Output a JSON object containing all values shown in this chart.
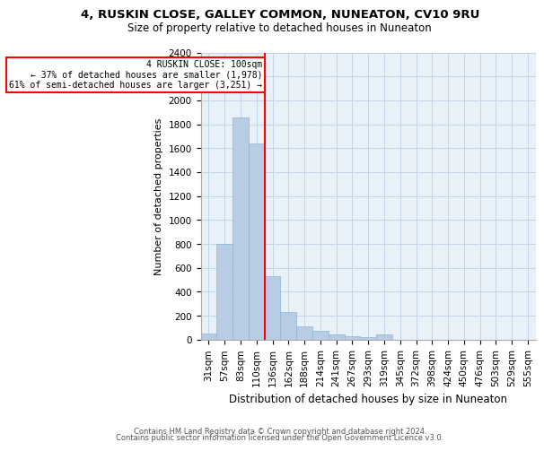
{
  "title1": "4, RUSKIN CLOSE, GALLEY COMMON, NUNEATON, CV10 9RU",
  "title2": "Size of property relative to detached houses in Nuneaton",
  "xlabel": "Distribution of detached houses by size in Nuneaton",
  "ylabel": "Number of detached properties",
  "categories": [
    "31sqm",
    "57sqm",
    "83sqm",
    "110sqm",
    "136sqm",
    "162sqm",
    "188sqm",
    "214sqm",
    "241sqm",
    "267sqm",
    "293sqm",
    "319sqm",
    "345sqm",
    "372sqm",
    "398sqm",
    "424sqm",
    "450sqm",
    "476sqm",
    "503sqm",
    "529sqm",
    "555sqm"
  ],
  "values": [
    50,
    800,
    1860,
    1640,
    530,
    230,
    110,
    70,
    40,
    30,
    20,
    40,
    0,
    0,
    0,
    0,
    0,
    0,
    0,
    0,
    0
  ],
  "bar_color": "#b8cce4",
  "bar_edge_color": "#8eb4d8",
  "vline_color": "red",
  "vline_x": 3.5,
  "annotation_title": "4 RUSKIN CLOSE: 100sqm",
  "annotation_line1": "← 37% of detached houses are smaller (1,978)",
  "annotation_line2": "61% of semi-detached houses are larger (3,251) →",
  "annotation_box_color": "red",
  "annotation_text_color": "black",
  "annotation_bg": "white",
  "ylim": [
    0,
    2400
  ],
  "yticks": [
    0,
    200,
    400,
    600,
    800,
    1000,
    1200,
    1400,
    1600,
    1800,
    2000,
    2200,
    2400
  ],
  "grid_color": "#c0d4e8",
  "bg_color": "#e8f0f8",
  "footer1": "Contains HM Land Registry data © Crown copyright and database right 2024.",
  "footer2": "Contains public sector information licensed under the Open Government Licence v3.0.",
  "title1_fontsize": 9.5,
  "title2_fontsize": 8.5,
  "xlabel_fontsize": 8.5,
  "ylabel_fontsize": 8,
  "tick_fontsize": 7.5,
  "footer_fontsize": 6
}
